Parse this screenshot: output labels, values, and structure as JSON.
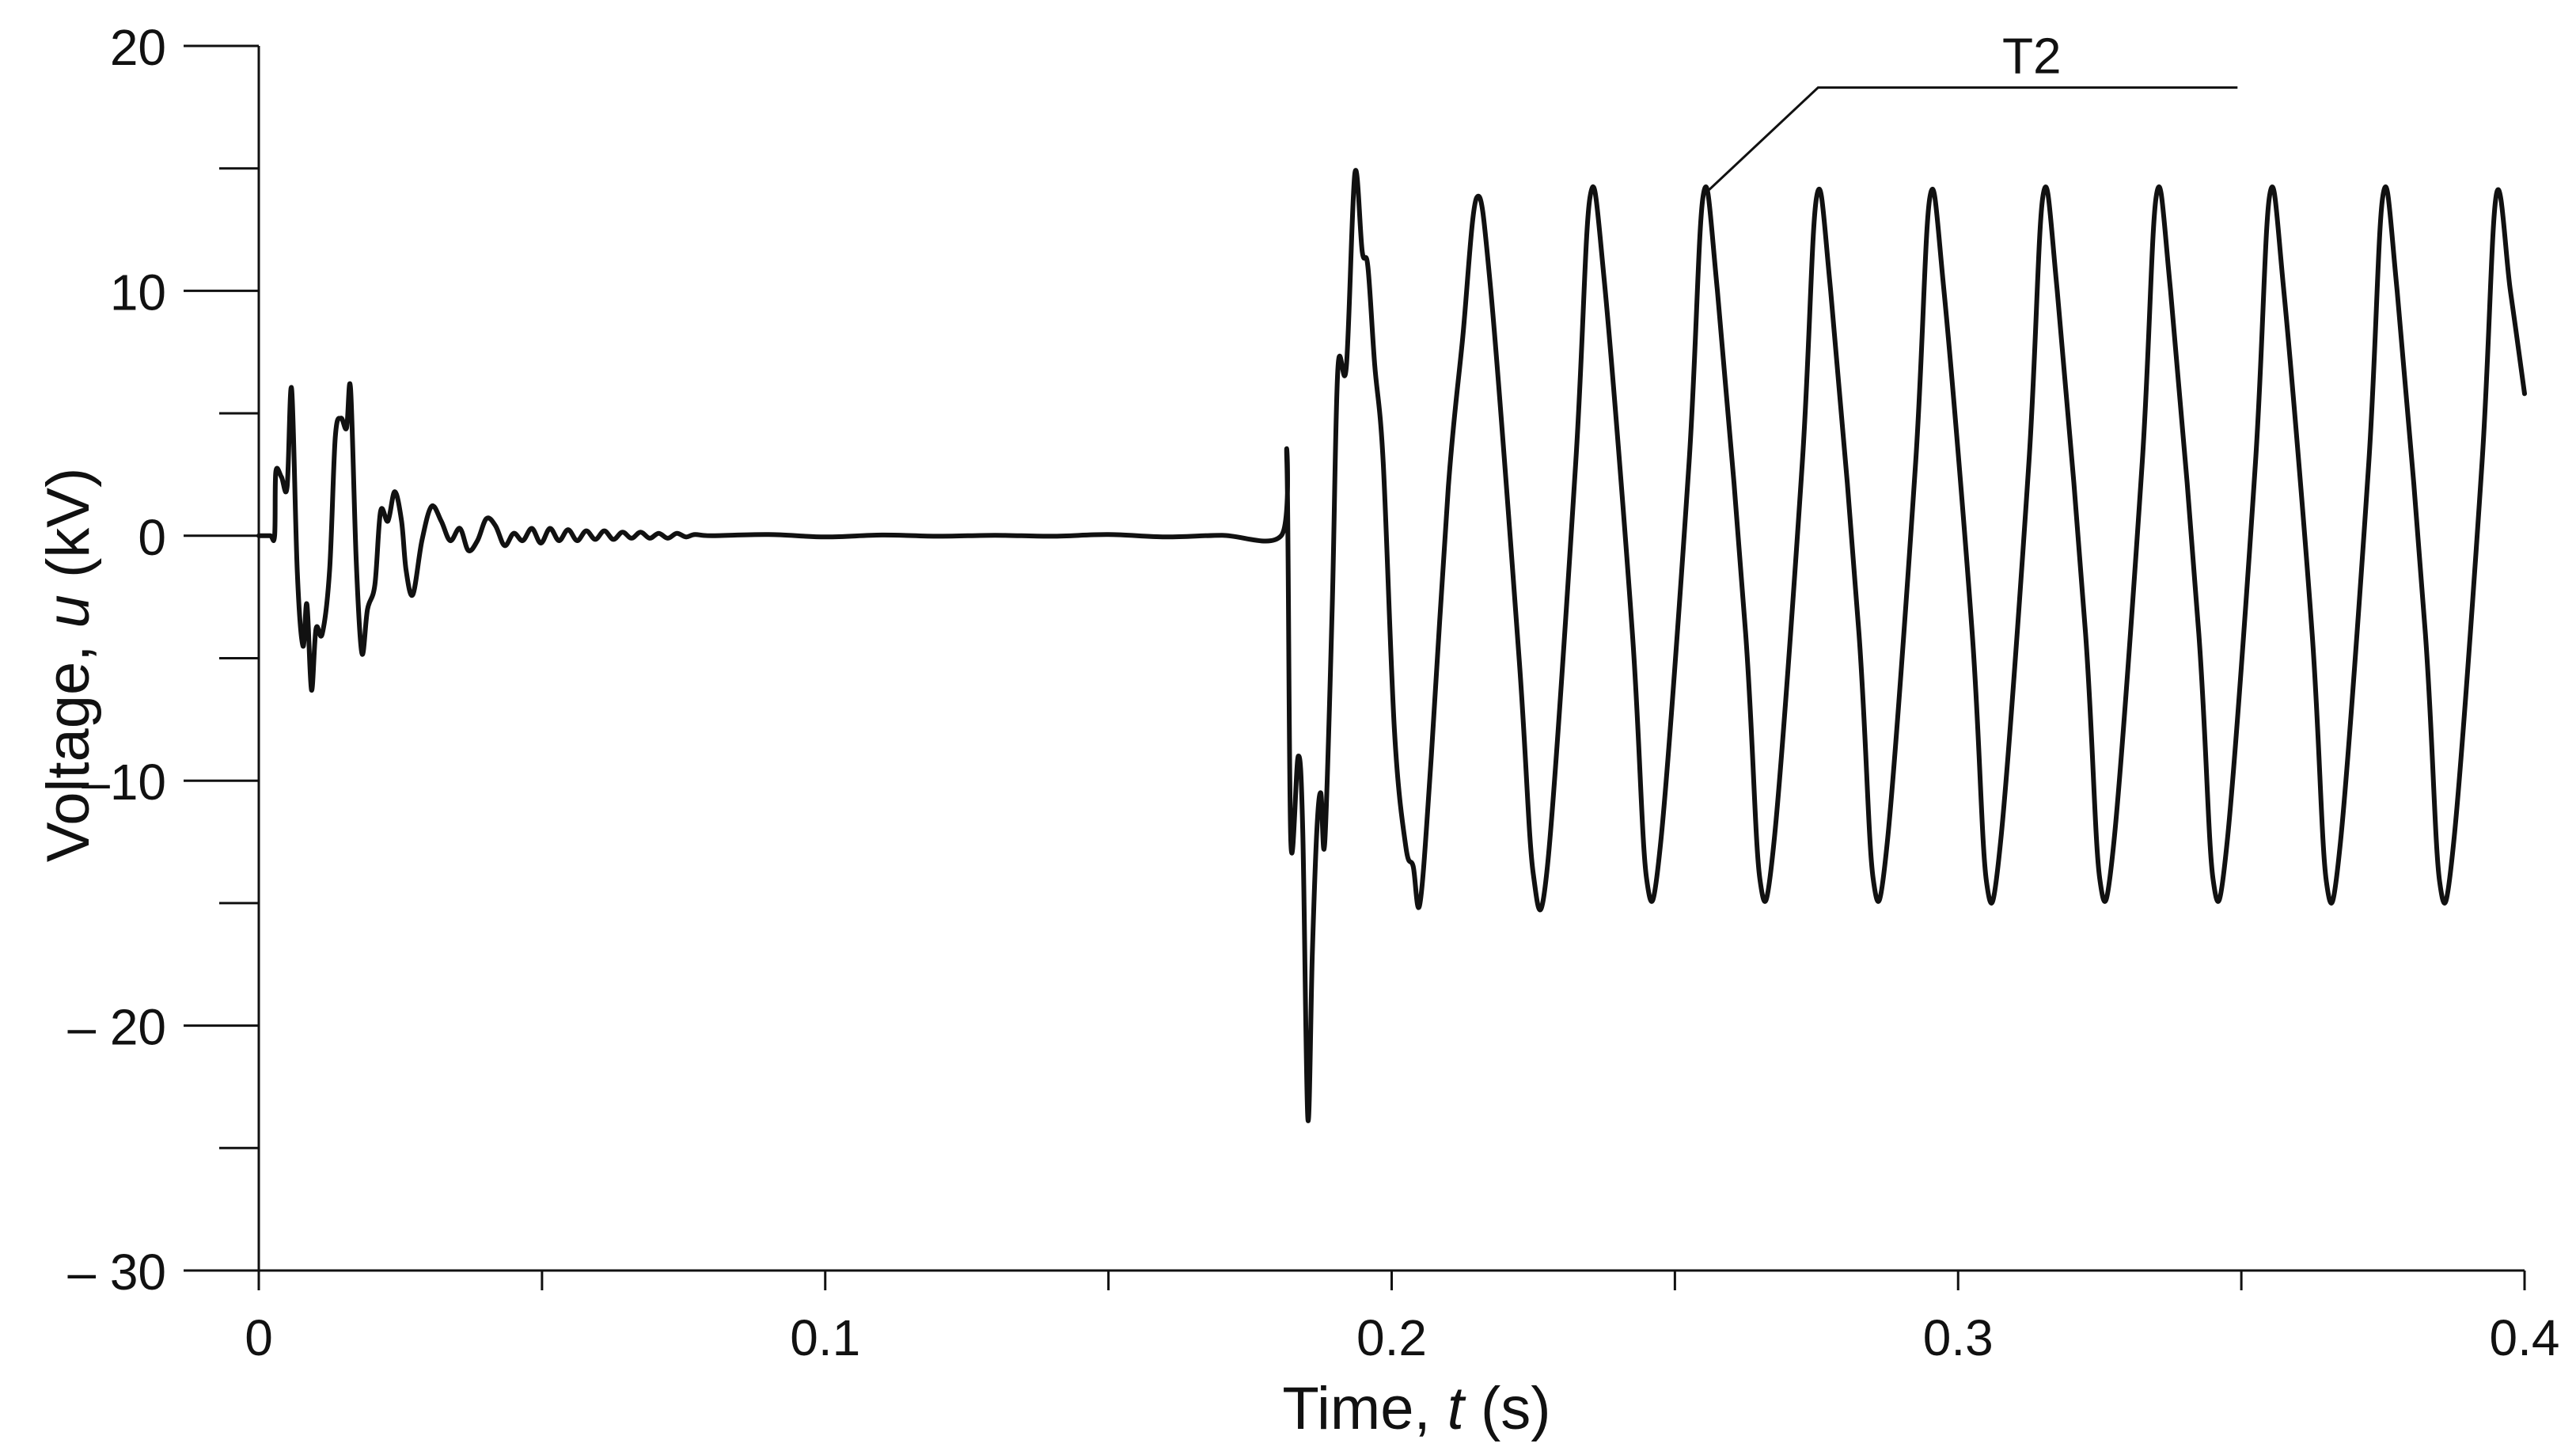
{
  "chart_data": {
    "type": "line",
    "title": "",
    "xlabel": {
      "prefix": "Time, ",
      "var": "t",
      "suffix": " (s)"
    },
    "ylabel": {
      "prefix": "Voltage, ",
      "var": "u",
      "suffix": " (kV)"
    },
    "xlim": [
      0,
      0.4
    ],
    "ylim": [
      -30,
      20
    ],
    "x_ticks": [
      {
        "value": 0,
        "label": "0"
      },
      {
        "value": 0.1,
        "label": "0.1"
      },
      {
        "value": 0.2,
        "label": "0.2"
      },
      {
        "value": 0.3,
        "label": "0.3"
      },
      {
        "value": 0.4,
        "label": "0.4"
      }
    ],
    "x_minor_ticks": [
      0.05,
      0.15,
      0.25,
      0.35
    ],
    "y_ticks": [
      {
        "value": 20,
        "label": "20"
      },
      {
        "value": 10,
        "label": "10"
      },
      {
        "value": 0,
        "label": "0"
      },
      {
        "value": -10,
        "label": "–10"
      },
      {
        "value": -20,
        "label": "– 20"
      },
      {
        "value": -30,
        "label": "– 30"
      }
    ],
    "y_minor_ticks": [
      15,
      5,
      -5,
      -15,
      -25
    ],
    "grid": false,
    "series": [
      {
        "name": "T2",
        "color": "#111111",
        "points": [
          [
            0,
            0
          ],
          [
            0.002,
            0
          ],
          [
            0.0028,
            0
          ],
          [
            0.003,
            2.6
          ],
          [
            0.004,
            2.4
          ],
          [
            0.005,
            2.0
          ],
          [
            0.0058,
            6.0
          ],
          [
            0.0068,
            -1.5
          ],
          [
            0.0078,
            -4.5
          ],
          [
            0.0085,
            -2.8
          ],
          [
            0.0093,
            -6.3
          ],
          [
            0.0101,
            -3.8
          ],
          [
            0.0112,
            -4.0
          ],
          [
            0.0125,
            -1.4
          ],
          [
            0.0135,
            4.0
          ],
          [
            0.0145,
            4.8
          ],
          [
            0.0155,
            4.4
          ],
          [
            0.0162,
            6.0
          ],
          [
            0.0172,
            -1.0
          ],
          [
            0.0182,
            -4.8
          ],
          [
            0.0192,
            -3.0
          ],
          [
            0.0205,
            -2.0
          ],
          [
            0.0215,
            1.0
          ],
          [
            0.0228,
            0.6
          ],
          [
            0.024,
            1.8
          ],
          [
            0.0252,
            0.6
          ],
          [
            0.026,
            -1.4
          ],
          [
            0.0272,
            -2.4
          ],
          [
            0.0288,
            -0.2
          ],
          [
            0.0305,
            1.2
          ],
          [
            0.0322,
            0.6
          ],
          [
            0.0338,
            -0.2
          ],
          [
            0.0355,
            0.3
          ],
          [
            0.037,
            -0.6
          ],
          [
            0.0386,
            -0.2
          ],
          [
            0.0402,
            0.7
          ],
          [
            0.0418,
            0.4
          ],
          [
            0.0434,
            -0.4
          ],
          [
            0.045,
            0.1
          ],
          [
            0.0466,
            -0.2
          ],
          [
            0.0482,
            0.3
          ],
          [
            0.0498,
            -0.3
          ],
          [
            0.0514,
            0.3
          ],
          [
            0.053,
            -0.2
          ],
          [
            0.0546,
            0.25
          ],
          [
            0.0562,
            -0.2
          ],
          [
            0.0578,
            0.2
          ],
          [
            0.0594,
            -0.15
          ],
          [
            0.061,
            0.2
          ],
          [
            0.0626,
            -0.15
          ],
          [
            0.0642,
            0.15
          ],
          [
            0.0658,
            -0.1
          ],
          [
            0.0674,
            0.15
          ],
          [
            0.069,
            -0.1
          ],
          [
            0.0706,
            0.1
          ],
          [
            0.0722,
            -0.1
          ],
          [
            0.0738,
            0.1
          ],
          [
            0.0754,
            -0.05
          ],
          [
            0.077,
            0.05
          ],
          [
            0.08,
            0
          ],
          [
            0.09,
            0.05
          ],
          [
            0.1,
            -0.05
          ],
          [
            0.11,
            0.03
          ],
          [
            0.12,
            -0.02
          ],
          [
            0.13,
            0.02
          ],
          [
            0.14,
            -0.02
          ],
          [
            0.15,
            0.05
          ],
          [
            0.16,
            -0.05
          ],
          [
            0.17,
            0.02
          ],
          [
            0.1805,
            0
          ],
          [
            0.1815,
            3.0
          ],
          [
            0.1822,
            -12.5
          ],
          [
            0.1835,
            -9.0
          ],
          [
            0.1843,
            -12.0
          ],
          [
            0.1852,
            -23.8
          ],
          [
            0.186,
            -17.0
          ],
          [
            0.1868,
            -12.0
          ],
          [
            0.1875,
            -10.5
          ],
          [
            0.1882,
            -12.5
          ],
          [
            0.1895,
            -3.0
          ],
          [
            0.1905,
            6.8
          ],
          [
            0.192,
            6.9
          ],
          [
            0.1935,
            14.8
          ],
          [
            0.1948,
            11.6
          ],
          [
            0.1958,
            11.0
          ],
          [
            0.197,
            7.0
          ],
          [
            0.1985,
            3.0
          ],
          [
            0.2005,
            -8.0
          ],
          [
            0.2025,
            -12.7
          ],
          [
            0.2038,
            -13.5
          ],
          [
            0.205,
            -15.0
          ],
          [
            0.207,
            -9.0
          ],
          [
            0.21,
            2.0
          ],
          [
            0.2125,
            8.0
          ],
          [
            0.215,
            13.8
          ],
          [
            0.2175,
            10.0
          ],
          [
            0.2225,
            -5.0
          ],
          [
            0.225,
            -13.8
          ],
          [
            0.2275,
            -13.5
          ],
          [
            0.2325,
            3.0
          ],
          [
            0.235,
            13.8
          ],
          [
            0.2375,
            10.5
          ],
          [
            0.2425,
            -4.0
          ],
          [
            0.245,
            -14.0
          ],
          [
            0.2475,
            -12.5
          ],
          [
            0.2525,
            3.0
          ],
          [
            0.255,
            13.9
          ],
          [
            0.2575,
            10.0
          ],
          [
            0.2625,
            -4.0
          ],
          [
            0.265,
            -14.0
          ],
          [
            0.2675,
            -12.5
          ],
          [
            0.2725,
            3.0
          ],
          [
            0.275,
            13.8
          ],
          [
            0.2775,
            10.0
          ],
          [
            0.2825,
            -4.0
          ],
          [
            0.285,
            -14.0
          ],
          [
            0.2875,
            -12.5
          ],
          [
            0.2925,
            3.0
          ],
          [
            0.295,
            13.8
          ],
          [
            0.2975,
            10.0
          ],
          [
            0.3025,
            -4.0
          ],
          [
            0.305,
            -14.1
          ],
          [
            0.3075,
            -12.5
          ],
          [
            0.3125,
            3.0
          ],
          [
            0.315,
            13.9
          ],
          [
            0.3175,
            10.0
          ],
          [
            0.3225,
            -4.0
          ],
          [
            0.325,
            -14.0
          ],
          [
            0.3275,
            -12.5
          ],
          [
            0.3325,
            3.0
          ],
          [
            0.335,
            13.9
          ],
          [
            0.3375,
            10.0
          ],
          [
            0.3425,
            -4.0
          ],
          [
            0.345,
            -14.0
          ],
          [
            0.3475,
            -12.5
          ],
          [
            0.3525,
            3.0
          ],
          [
            0.355,
            13.9
          ],
          [
            0.3575,
            10.0
          ],
          [
            0.3625,
            -4.0
          ],
          [
            0.365,
            -14.1
          ],
          [
            0.3675,
            -12.5
          ],
          [
            0.3725,
            3.0
          ],
          [
            0.375,
            13.9
          ],
          [
            0.3775,
            10.0
          ],
          [
            0.3825,
            -4.0
          ],
          [
            0.385,
            -14.1
          ],
          [
            0.3875,
            -12.5
          ],
          [
            0.3925,
            3.0
          ],
          [
            0.395,
            13.9
          ],
          [
            0.3975,
            10.0
          ],
          [
            0.4,
            5.8
          ]
        ]
      }
    ],
    "annotations": [
      {
        "text": "T2",
        "target": [
          0.255,
          13.9
        ],
        "label_at": [
          0.313,
          18.3
        ]
      }
    ]
  }
}
